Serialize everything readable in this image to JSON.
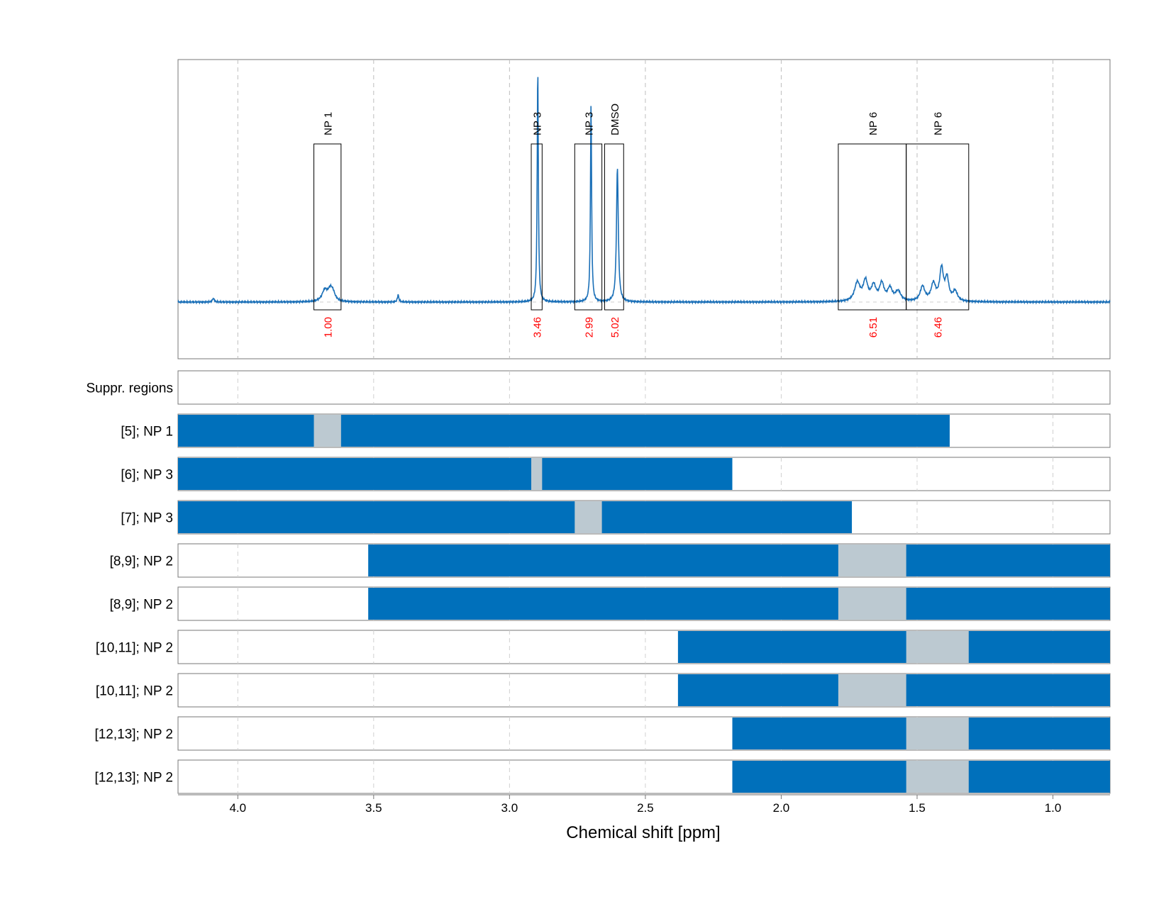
{
  "chart_data": {
    "type": "line",
    "xlabel": "Chemical shift [ppm]",
    "xlim": [
      4.22,
      0.79
    ],
    "x_reversed": true,
    "x_ticks": [
      4.0,
      3.5,
      3.0,
      2.5,
      2.0,
      1.5,
      1.0
    ],
    "x_tick_labels": [
      "4.0",
      "3.5",
      "3.0",
      "2.5",
      "2.0",
      "1.5",
      "1.0"
    ],
    "grid": true,
    "spectrum": {
      "baseline": 0,
      "peaks": [
        {
          "ppm": 4.09,
          "height": 0.015,
          "width": 0.004
        },
        {
          "ppm": 3.41,
          "height": 0.03,
          "width": 0.003
        },
        {
          "ppm": 3.68,
          "height": 0.045,
          "width": 0.012
        },
        {
          "ppm": 3.66,
          "height": 0.04,
          "width": 0.01
        },
        {
          "ppm": 3.65,
          "height": 0.03,
          "width": 0.01
        },
        {
          "ppm": 2.896,
          "height": 0.96,
          "width": 0.0025
        },
        {
          "ppm": 2.7,
          "height": 0.81,
          "width": 0.0025
        },
        {
          "ppm": 2.603,
          "height": 0.55,
          "width": 0.004
        },
        {
          "ppm": 1.72,
          "height": 0.075,
          "width": 0.012
        },
        {
          "ppm": 1.69,
          "height": 0.08,
          "width": 0.01
        },
        {
          "ppm": 1.66,
          "height": 0.06,
          "width": 0.01
        },
        {
          "ppm": 1.63,
          "height": 0.07,
          "width": 0.01
        },
        {
          "ppm": 1.6,
          "height": 0.05,
          "width": 0.01
        },
        {
          "ppm": 1.57,
          "height": 0.04,
          "width": 0.012
        },
        {
          "ppm": 1.48,
          "height": 0.06,
          "width": 0.01
        },
        {
          "ppm": 1.44,
          "height": 0.07,
          "width": 0.01
        },
        {
          "ppm": 1.41,
          "height": 0.13,
          "width": 0.008
        },
        {
          "ppm": 1.39,
          "height": 0.09,
          "width": 0.008
        },
        {
          "ppm": 1.36,
          "height": 0.04,
          "width": 0.01
        }
      ],
      "color": "#1a6fb7"
    },
    "integration_regions": [
      {
        "label": "NP 1",
        "from": 3.72,
        "to": 3.62,
        "value": "1.00"
      },
      {
        "label": "NP 3",
        "from": 2.92,
        "to": 2.88,
        "value": "3.46"
      },
      {
        "label": "NP 3",
        "from": 2.76,
        "to": 2.66,
        "value": "2.99"
      },
      {
        "label": "DMSO",
        "from": 2.65,
        "to": 2.58,
        "value": "5.02"
      },
      {
        "label": "NP 6",
        "from": 1.79,
        "to": 1.54,
        "value": "6.51"
      },
      {
        "label": "NP 6",
        "from": 1.54,
        "to": 1.31,
        "value": "6.46"
      }
    ],
    "region_label_color": "#000000",
    "integral_value_color": "#ff0000",
    "tracks": [
      {
        "label": "Suppr. regions",
        "window": null,
        "gaps": []
      },
      {
        "label": "[5]; NP 1",
        "window": [
          4.22,
          1.38
        ],
        "gaps": [
          [
            3.72,
            3.62
          ]
        ]
      },
      {
        "label": "[6]; NP 3",
        "window": [
          4.22,
          2.18
        ],
        "gaps": [
          [
            2.92,
            2.88
          ]
        ]
      },
      {
        "label": "[7]; NP 3",
        "window": [
          4.22,
          1.74
        ],
        "gaps": [
          [
            2.76,
            2.66
          ]
        ]
      },
      {
        "label": "[8,9]; NP 2",
        "window": [
          3.52,
          0.79
        ],
        "gaps": [
          [
            1.79,
            1.54
          ]
        ]
      },
      {
        "label": "[8,9]; NP 2",
        "window": [
          3.52,
          0.79
        ],
        "gaps": [
          [
            1.79,
            1.54
          ]
        ]
      },
      {
        "label": "[10,11]; NP 2",
        "window": [
          2.38,
          0.79
        ],
        "gaps": [
          [
            1.54,
            1.31
          ]
        ]
      },
      {
        "label": "[10,11]; NP 2",
        "window": [
          2.38,
          0.79
        ],
        "gaps": [
          [
            1.79,
            1.54
          ]
        ]
      },
      {
        "label": "[12,13]; NP 2",
        "window": [
          2.18,
          0.79
        ],
        "gaps": [
          [
            1.54,
            1.31
          ]
        ]
      },
      {
        "label": "[12,13]; NP 2",
        "window": [
          2.18,
          0.79
        ],
        "gaps": [
          [
            1.54,
            1.31
          ]
        ]
      }
    ],
    "window_color": "#0070bb",
    "gap_color": "#bcc9d1"
  }
}
